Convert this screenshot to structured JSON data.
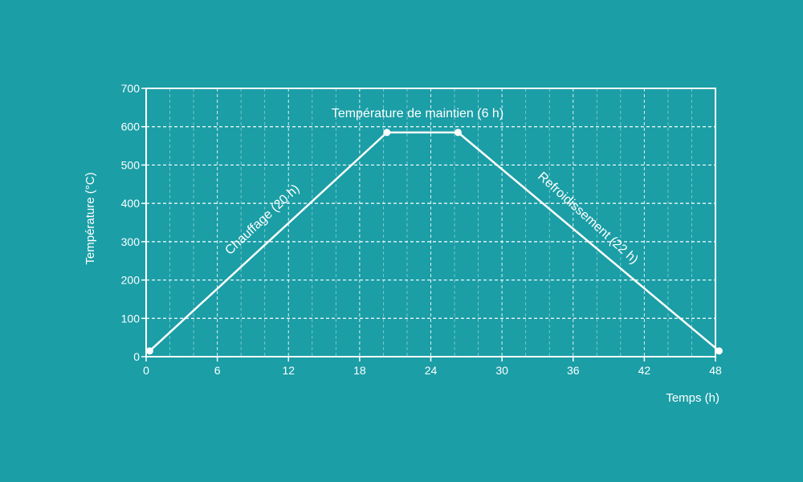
{
  "background_color": "#1b9ea6",
  "line_color": "#ffffff",
  "chart_data": {
    "type": "line",
    "xlabel": "Temps (h)",
    "ylabel": "Température (°C)",
    "xlim": [
      0,
      48
    ],
    "ylim": [
      0,
      700
    ],
    "x_ticks": [
      0,
      6,
      12,
      18,
      24,
      30,
      36,
      42,
      48
    ],
    "y_ticks": [
      0,
      100,
      200,
      300,
      400,
      500,
      600,
      700
    ],
    "x_minor_grid_step": 2,
    "grid": true,
    "series": [
      {
        "points": [
          {
            "x": 0.3,
            "y": 15
          },
          {
            "x": 20.3,
            "y": 585
          },
          {
            "x": 26.3,
            "y": 585
          },
          {
            "x": 48.3,
            "y": 15
          }
        ]
      }
    ],
    "annotations": [
      {
        "id": "heating",
        "text": "Chauffage (20 h)"
      },
      {
        "id": "hold",
        "text": "Température de maintien (6 h)"
      },
      {
        "id": "cooling",
        "text": "Refroidissement (22 h)"
      }
    ]
  }
}
